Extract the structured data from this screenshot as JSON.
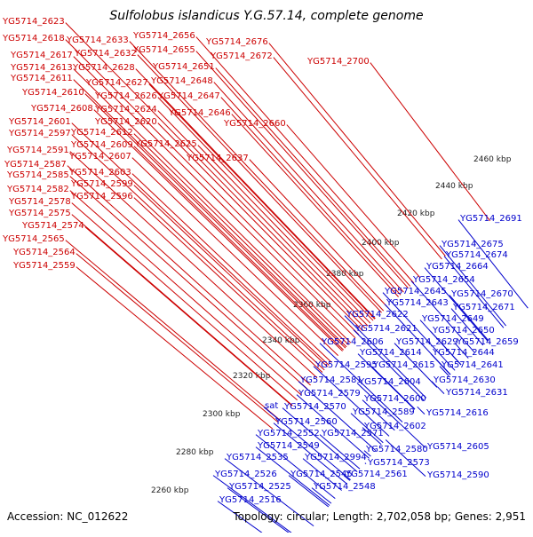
{
  "title": "Sulfolobus islandicus Y.G.57.14, complete genome",
  "accession": "Accession: NC_012622",
  "summary": "Topology: circular; Length: 2,702,058 bp; Genes: 2,951",
  "colors": {
    "forward": "#e60000",
    "reverse": "#0a0ae6",
    "cyan": "#2ee6e6",
    "green_dots": "#1a8a1a",
    "backbone": "#8a8a8a",
    "red_label": "#cc0000",
    "blue_label": "#0000cc"
  },
  "ticks": [
    "2460 kbp",
    "2440 kbp",
    "2420 kbp",
    "2400 kbp",
    "2380 kbp",
    "2360 kbp",
    "2340 kbp",
    "2320 kbp",
    "2300 kbp",
    "2280 kbp",
    "2260 kbp"
  ],
  "red_labels": [
    "YG5714_2623",
    "YG5714_2618",
    "YG5714_2617",
    "YG5714_2613",
    "YG5714_2611",
    "YG5714_2610",
    "YG5714_2608",
    "YG5714_2601",
    "YG5714_2597",
    "YG5714_2591",
    "YG5714_2587",
    "YG5714_2585",
    "YG5714_2582",
    "YG5714_2578",
    "YG5714_2575",
    "YG5714_2574",
    "YG5714_2565",
    "YG5714_2564",
    "YG5714_2559",
    "YG5714_2633",
    "YG5714_2632",
    "YG5714_2628",
    "YG5714_2627",
    "YG5714_2626",
    "YG5714_2624",
    "YG5714_2620",
    "YG5714_2612",
    "YG5714_2609",
    "YG5714_2607",
    "YG5714_2603",
    "YG5714_2599",
    "YG5714_2596",
    "YG5714_2656",
    "YG5714_2655",
    "YG5714_2651",
    "YG5714_2648",
    "YG5714_2647",
    "YG5714_2646",
    "YG5714_2625",
    "YG5714_2676",
    "YG5714_2672",
    "YG5714_2660",
    "YG5714_2637",
    "YG5714_2700"
  ],
  "blue_labels": [
    "YG5714_2691",
    "YG5714_2675",
    "YG5714_2674",
    "YG5714_2664",
    "YG5714_2654",
    "YG5714_2645",
    "YG5714_2670",
    "YG5714_2643",
    "YG5714_2671",
    "YG5714_2622",
    "YG5714_2649",
    "YG5714_2621",
    "YG5714_2650",
    "YG5714_2606",
    "YG5714_2629",
    "YG5714_2659",
    "YG5714_2614",
    "YG5714_2644",
    "YG5714_2595",
    "YG5714_2615",
    "YG5714_2641",
    "YG5714_2581",
    "YG5714_2604",
    "YG5714_2630",
    "YG5714_2579",
    "YG5714_2631",
    "YG5714_2600",
    "sat",
    "YG5714_2570",
    "YG5714_2589",
    "YG5714_2616",
    "YG5714_2560",
    "YG5714_2602",
    "YG5714_2552",
    "YG5714_2571",
    "YG5714_2549",
    "YG5714_2605",
    "YG5714_2580",
    "YG5714_2535",
    "YG5714_2994",
    "YG5714_2573",
    "YG5714_2526",
    "YG5714_2545",
    "YG5714_2561",
    "YG5714_2590",
    "YG5714_2525",
    "YG5714_2548",
    "YG5714_2516"
  ]
}
